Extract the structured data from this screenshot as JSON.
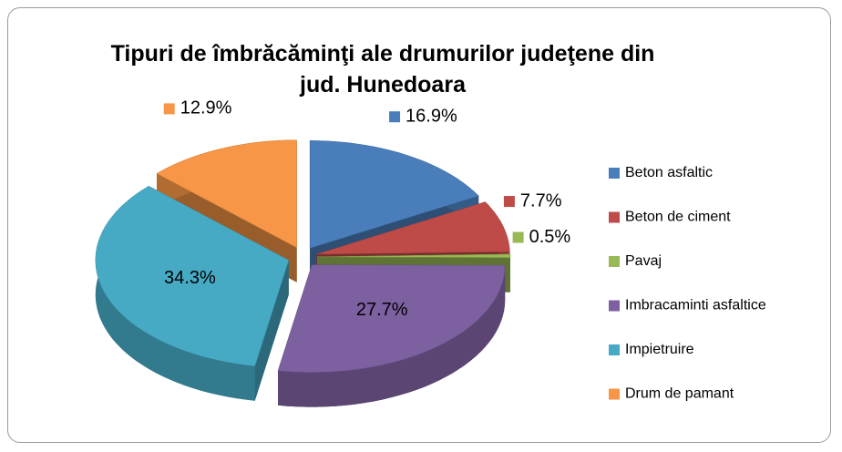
{
  "chart_data": {
    "type": "pie",
    "title": "Tipuri de îmbrăcăminţi ale drumurilor judeţene din jud. Hunedoara",
    "categories": [
      "Beton asfaltic",
      "Beton de ciment",
      "Pavaj",
      "Imbracaminti asfaltice",
      "Impietruire",
      "Drum de pamant"
    ],
    "values": [
      16.9,
      7.7,
      0.5,
      27.7,
      34.3,
      12.9
    ],
    "value_labels": [
      "16.9%",
      "7.7%",
      "0.5%",
      "27.7%",
      "34.3%",
      "12.9%"
    ],
    "colors": [
      "#4a7ebb",
      "#be4b48",
      "#98b954",
      "#7d60a0",
      "#46aac5",
      "#f79646"
    ],
    "legend": "right"
  }
}
